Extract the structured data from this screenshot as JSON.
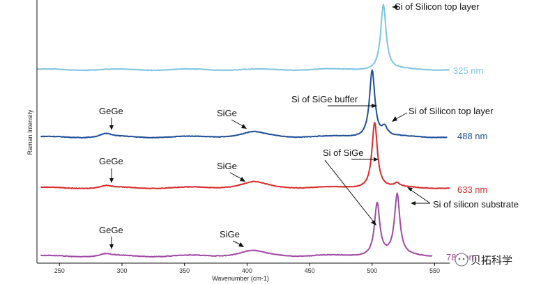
{
  "chart_data": {
    "type": "line",
    "title": "",
    "xlabel": "Wavenumber (cm-1)",
    "ylabel": "Raman Intensity",
    "xlim": [
      232,
      562
    ],
    "xticks": [
      250,
      300,
      350,
      400,
      450,
      500,
      550
    ],
    "grid": false,
    "series": [
      {
        "name": "325 nm",
        "color": "#7fc4e3"
      },
      {
        "name": "488 nm",
        "color": "#1f4f99"
      },
      {
        "name": "633 nm",
        "color": "#d92b2b"
      },
      {
        "name": "785 nm",
        "color": "#a04aa6"
      }
    ],
    "peaks": {
      "325 nm": [
        {
          "x": 509,
          "height": 0.96
        }
      ],
      "488 nm": [
        {
          "x": 287,
          "height": 0.05
        },
        {
          "x": 405,
          "height": 0.07
        },
        {
          "x": 500,
          "height": 0.96
        },
        {
          "x": 510,
          "height": 0.12
        }
      ],
      "633 nm": [
        {
          "x": 287,
          "height": 0.03
        },
        {
          "x": 405,
          "height": 0.08
        },
        {
          "x": 502,
          "height": 0.92
        },
        {
          "x": 520,
          "height": 0.05
        }
      ],
      "785 nm": [
        {
          "x": 287,
          "height": 0.03
        },
        {
          "x": 404,
          "height": 0.07
        },
        {
          "x": 504,
          "height": 0.72
        },
        {
          "x": 520,
          "height": 0.83
        }
      ]
    },
    "annotations": [
      {
        "text": "Si of Silicon top layer"
      },
      {
        "text": "Si of SiGe buffer"
      },
      {
        "text": "Si of Silicon top layer"
      },
      {
        "text": "GeGe"
      },
      {
        "text": "SiGe"
      },
      {
        "text": "Si of SiGe"
      },
      {
        "text": "GeGe"
      },
      {
        "text": "SiGe"
      },
      {
        "text": "Si of silicon substrate"
      },
      {
        "text": "GeGe"
      },
      {
        "text": "SiGe"
      }
    ]
  },
  "watermark": "贝拓科学"
}
